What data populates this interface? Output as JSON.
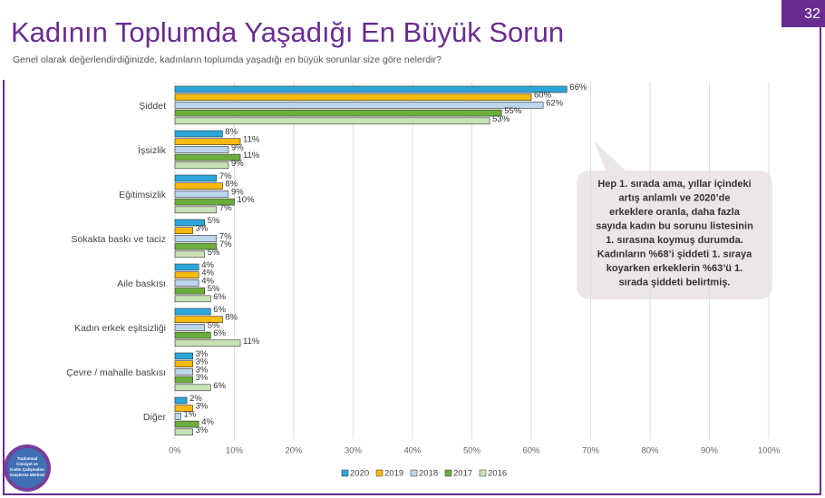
{
  "page_number": "32",
  "chart_data": {
    "type": "hbar",
    "title": "Kadının Toplumda Yaşadığı En Büyük Sorun",
    "subtitle": "Genel olarak değerlendirdiğinizde, kadınların toplumda yaşadığı en büyük sorunlar size göre nelerdir?",
    "categories": [
      "Şiddet",
      "İşsizlik",
      "Eğitimsizlik",
      "Sokakta baskı ve taciz",
      "Aile baskısı",
      "Kadın erkek eşitsizliği",
      "Çevre / mahalle baskısı",
      "Diğer"
    ],
    "series": [
      {
        "name": "2020",
        "color": "#2ba6d9",
        "values": [
          66,
          8,
          7,
          5,
          4,
          6,
          3,
          2
        ],
        "value_labels": [
          "66%",
          "8%",
          "7%",
          "5%",
          "4%",
          "6%",
          "3%",
          "2%"
        ]
      },
      {
        "name": "2019",
        "color": "#f6b90c",
        "values": [
          60,
          11,
          8,
          3,
          4,
          8,
          3,
          3
        ],
        "value_labels": [
          "60%",
          "11%",
          "8%",
          "3%",
          "4%",
          "8%",
          "3%",
          "3%"
        ]
      },
      {
        "name": "2018",
        "color": "#bcd6ec",
        "values": [
          62,
          9,
          9,
          7,
          4,
          5,
          3,
          1
        ],
        "value_labels": [
          "62%",
          "9%",
          "9%",
          "7%",
          "4%",
          "5%",
          "3%",
          "1%"
        ]
      },
      {
        "name": "2017",
        "color": "#6cae3c",
        "values": [
          55,
          11,
          10,
          7,
          5,
          6,
          3,
          4
        ],
        "value_labels": [
          "55%",
          "11%",
          "10%",
          "7%",
          "5%",
          "6%",
          "3%",
          "4%"
        ]
      },
      {
        "name": "2016",
        "color": "#c8e2b6",
        "values": [
          53,
          9,
          7,
          5,
          6,
          11,
          6,
          3
        ],
        "value_labels": [
          "53%",
          "9%",
          "7%",
          "5%",
          "6%",
          "11%",
          "6%",
          "3%"
        ]
      }
    ],
    "xlim": [
      0,
      100
    ],
    "xticks": [
      {
        "value": 0,
        "label": "0%"
      },
      {
        "value": 10,
        "label": "10%"
      },
      {
        "value": 20,
        "label": "20%"
      },
      {
        "value": 30,
        "label": "30%"
      },
      {
        "value": 40,
        "label": "40%"
      },
      {
        "value": 50,
        "label": "50%"
      },
      {
        "value": 60,
        "label": "60%"
      },
      {
        "value": 70,
        "label": "70%"
      },
      {
        "value": 80,
        "label": "80%"
      },
      {
        "value": 90,
        "label": "90%"
      },
      {
        "value": 100,
        "label": "100%"
      }
    ],
    "grid": true,
    "legend": "bottom",
    "annotation": [
      "Hep 1. sırada ama, yıllar içindeki",
      "artış anlamlı ve 2020’de",
      "erkeklere oranla, daha fazla",
      "sayıda kadın bu sorunu listesinin",
      "1. sırasına koymuş durumda.",
      "Kadınların %68’i şiddeti 1. sıraya",
      "koyarken erkeklerin %63’ü 1.",
      "sırada şiddeti belirtmiş."
    ]
  },
  "logo": [
    "Toplumsal",
    "Cinsiyet ve",
    "Kadın Çalışmaları",
    "Araştırma Merkezi"
  ]
}
